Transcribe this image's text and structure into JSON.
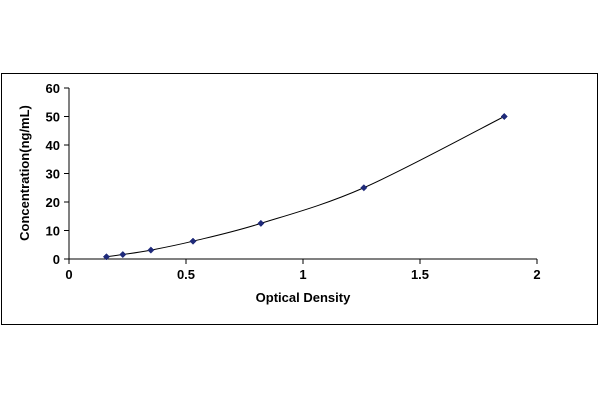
{
  "chart_data": {
    "type": "scatter",
    "title": "",
    "xlabel": "Optical Density",
    "ylabel": "Concentration(ng/mL)",
    "xlim": [
      0,
      2
    ],
    "ylim": [
      0,
      60
    ],
    "x_ticks": [
      "0",
      "0.5",
      "1",
      "1.5",
      "2"
    ],
    "y_ticks": [
      "0",
      "10",
      "20",
      "30",
      "40",
      "50",
      "60"
    ],
    "grid": false,
    "legend": "none",
    "trendline": true,
    "marker": "diamond",
    "colors": {
      "points": "#1f2a7a",
      "line": "#000000"
    },
    "series": [
      {
        "x": [
          0.16,
          0.23,
          0.35,
          0.53,
          0.82,
          1.26,
          1.86
        ],
        "y": [
          0.78,
          1.56,
          3.12,
          6.25,
          12.5,
          25,
          50
        ]
      }
    ]
  }
}
